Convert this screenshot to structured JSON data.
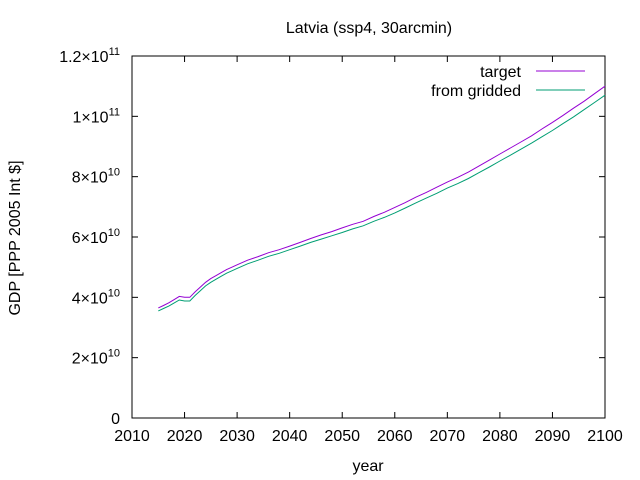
{
  "chart_data": {
    "type": "line",
    "title": "Latvia (ssp4, 30arcmin)",
    "xlabel": "year",
    "ylabel": "GDP [PPP 2005 Int $]",
    "xlim": [
      2010,
      2100
    ],
    "ylim": [
      0,
      120000000000
    ],
    "grid": false,
    "legend_position": "top-right",
    "x_ticks": [
      {
        "value": 2010,
        "label": "2010"
      },
      {
        "value": 2020,
        "label": "2020"
      },
      {
        "value": 2030,
        "label": "2030"
      },
      {
        "value": 2040,
        "label": "2040"
      },
      {
        "value": 2050,
        "label": "2050"
      },
      {
        "value": 2060,
        "label": "2060"
      },
      {
        "value": 2070,
        "label": "2070"
      },
      {
        "value": 2080,
        "label": "2080"
      },
      {
        "value": 2090,
        "label": "2090"
      },
      {
        "value": 2100,
        "label": "2100"
      }
    ],
    "y_ticks": [
      {
        "value": 0,
        "mantissa": "0",
        "exponent": ""
      },
      {
        "value": 20000000000,
        "mantissa": "2×10",
        "exponent": "10"
      },
      {
        "value": 40000000000,
        "mantissa": "4×10",
        "exponent": "10"
      },
      {
        "value": 60000000000,
        "mantissa": "6×10",
        "exponent": "10"
      },
      {
        "value": 80000000000,
        "mantissa": "8×10",
        "exponent": "10"
      },
      {
        "value": 100000000000,
        "mantissa": "1×10",
        "exponent": "11"
      },
      {
        "value": 120000000000,
        "mantissa": "1.2×10",
        "exponent": "11"
      }
    ],
    "series": [
      {
        "name": "target",
        "color": "#9400d3",
        "x": [
          2015,
          2016,
          2017,
          2018,
          2019,
          2020,
          2021,
          2022,
          2023,
          2024,
          2025,
          2026,
          2027,
          2028,
          2029,
          2030,
          2032,
          2034,
          2036,
          2038,
          2040,
          2042,
          2044,
          2046,
          2048,
          2050,
          2052,
          2054,
          2056,
          2058,
          2060,
          2062,
          2064,
          2066,
          2068,
          2070,
          2072,
          2074,
          2076,
          2078,
          2080,
          2082,
          2084,
          2086,
          2088,
          2090,
          2092,
          2094,
          2096,
          2098,
          2100
        ],
        "y": [
          36500000000,
          37300000000,
          38200000000,
          39200000000,
          40300000000,
          40000000000,
          40000000000,
          41800000000,
          43400000000,
          45000000000,
          46200000000,
          47200000000,
          48200000000,
          49200000000,
          50000000000,
          50800000000,
          52300000000,
          53500000000,
          54800000000,
          55800000000,
          57000000000,
          58200000000,
          59500000000,
          60700000000,
          61800000000,
          63000000000,
          64200000000,
          65200000000,
          66800000000,
          68200000000,
          69800000000,
          71400000000,
          73200000000,
          74800000000,
          76500000000,
          78200000000,
          79800000000,
          81500000000,
          83500000000,
          85500000000,
          87500000000,
          89500000000,
          91500000000,
          93500000000,
          95800000000,
          98000000000,
          100300000000,
          102700000000,
          105000000000,
          107500000000,
          110000000000
        ]
      },
      {
        "name": "from gridded",
        "color": "#009e73",
        "x": [
          2015,
          2016,
          2017,
          2018,
          2019,
          2020,
          2021,
          2022,
          2023,
          2024,
          2025,
          2026,
          2027,
          2028,
          2029,
          2030,
          2032,
          2034,
          2036,
          2038,
          2040,
          2042,
          2044,
          2046,
          2048,
          2050,
          2052,
          2054,
          2056,
          2058,
          2060,
          2062,
          2064,
          2066,
          2068,
          2070,
          2072,
          2074,
          2076,
          2078,
          2080,
          2082,
          2084,
          2086,
          2088,
          2090,
          2092,
          2094,
          2096,
          2098,
          2100
        ],
        "y": [
          35500000000,
          36300000000,
          37100000000,
          38100000000,
          39100000000,
          38800000000,
          38800000000,
          40600000000,
          42200000000,
          43800000000,
          45000000000,
          46000000000,
          47000000000,
          48000000000,
          48800000000,
          49600000000,
          51100000000,
          52300000000,
          53600000000,
          54600000000,
          55800000000,
          57000000000,
          58200000000,
          59300000000,
          60400000000,
          61500000000,
          62700000000,
          63700000000,
          65200000000,
          66500000000,
          68000000000,
          69600000000,
          71300000000,
          72900000000,
          74500000000,
          76200000000,
          77700000000,
          79400000000,
          81300000000,
          83200000000,
          85200000000,
          87100000000,
          89100000000,
          91100000000,
          93200000000,
          95300000000,
          97600000000,
          99800000000,
          102200000000,
          104600000000,
          107000000000
        ]
      }
    ]
  }
}
